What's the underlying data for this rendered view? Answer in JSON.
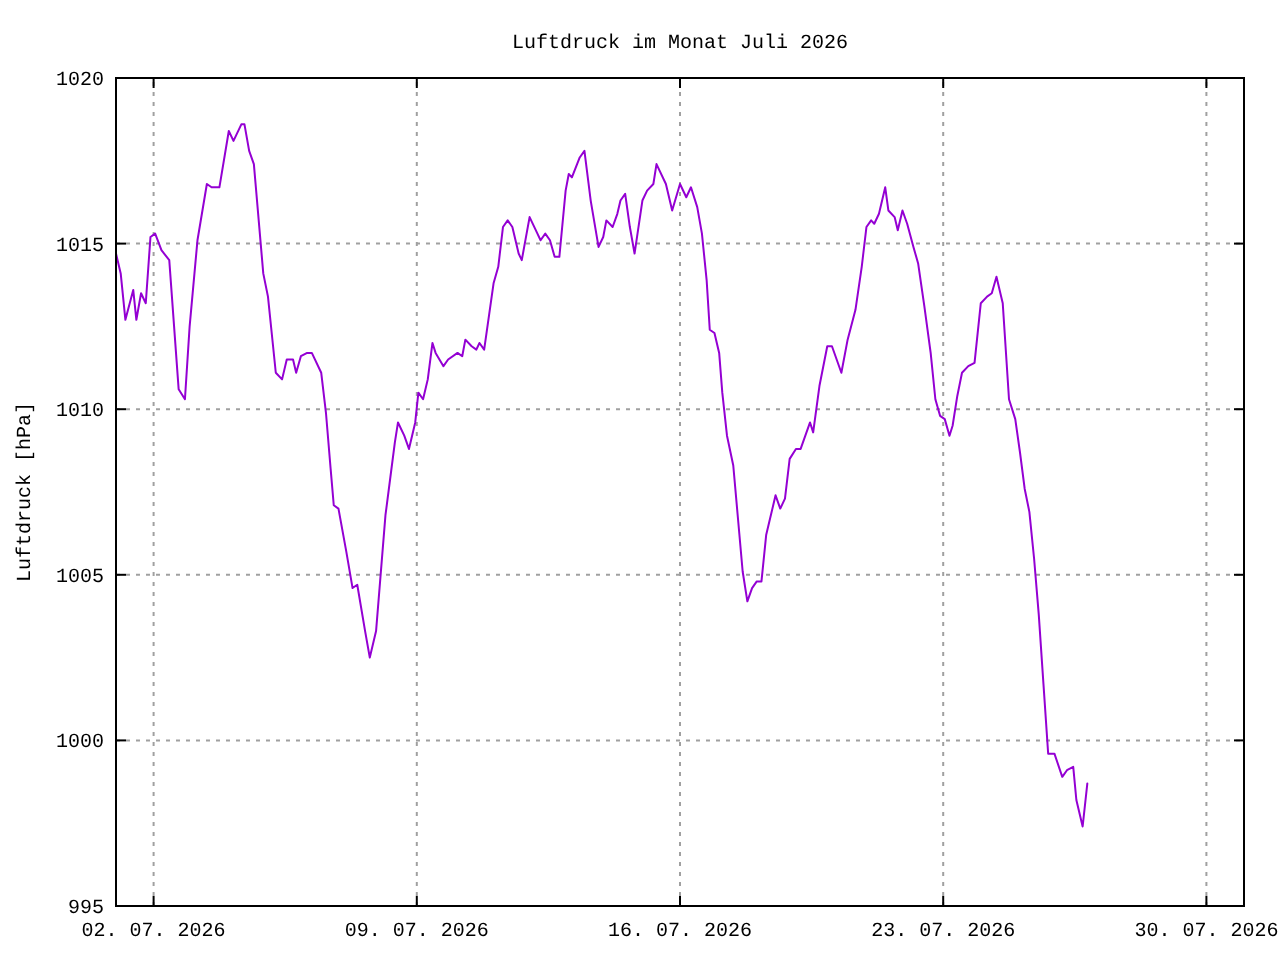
{
  "chart_data": {
    "type": "line",
    "title": "Luftdruck im Monat Juli 2026",
    "ylabel": "Luftdruck [hPa]",
    "x": [
      "2026-07-01T00:00",
      "2026-07-01T03:00",
      "2026-07-01T06:00",
      "2026-07-01T11:00",
      "2026-07-01T13:00",
      "2026-07-01T16:00",
      "2026-07-01T19:00",
      "2026-07-01T22:00",
      "2026-07-02T01:00",
      "2026-07-02T05:00",
      "2026-07-02T10:00",
      "2026-07-02T16:00",
      "2026-07-02T20:00",
      "2026-07-02T23:00",
      "2026-07-03T04:00",
      "2026-07-03T10:00",
      "2026-07-03T13:00",
      "2026-07-03T18:00",
      "2026-07-04T00:00",
      "2026-07-04T03:00",
      "2026-07-04T08:00",
      "2026-07-04T10:00",
      "2026-07-04T13:00",
      "2026-07-04T16:00",
      "2026-07-04T22:00",
      "2026-07-05T01:00",
      "2026-07-05T06:00",
      "2026-07-05T10:00",
      "2026-07-05T13:00",
      "2026-07-05T17:00",
      "2026-07-05T19:00",
      "2026-07-05T22:00",
      "2026-07-06T02:00",
      "2026-07-06T05:00",
      "2026-07-06T11:00",
      "2026-07-06T14:00",
      "2026-07-06T17:00",
      "2026-07-06T19:00",
      "2026-07-06T22:00",
      "2026-07-07T03:00",
      "2026-07-07T07:00",
      "2026-07-07T10:00",
      "2026-07-07T15:00",
      "2026-07-07T18:00",
      "2026-07-07T22:00",
      "2026-07-08T04:00",
      "2026-07-08T07:00",
      "2026-07-08T10:00",
      "2026-07-08T12:00",
      "2026-07-08T16:00",
      "2026-07-08T19:00",
      "2026-07-08T23:00",
      "2026-07-09T01:00",
      "2026-07-09T04:00",
      "2026-07-09T07:00",
      "2026-07-09T10:00",
      "2026-07-09T12:00",
      "2026-07-09T17:00",
      "2026-07-09T20:00",
      "2026-07-10T02:00",
      "2026-07-10T05:00",
      "2026-07-10T07:00",
      "2026-07-10T11:00",
      "2026-07-10T14:00",
      "2026-07-10T16:00",
      "2026-07-10T19:00",
      "2026-07-11T01:00",
      "2026-07-11T04:00",
      "2026-07-11T07:00",
      "2026-07-11T10:00",
      "2026-07-11T13:00",
      "2026-07-11T17:00",
      "2026-07-11T19:00",
      "2026-07-12T00:00",
      "2026-07-12T05:00",
      "2026-07-12T07:00",
      "2026-07-12T10:00",
      "2026-07-12T13:00",
      "2026-07-12T16:00",
      "2026-07-12T19:00",
      "2026-07-12T23:00",
      "2026-07-13T01:00",
      "2026-07-13T03:00",
      "2026-07-13T08:00",
      "2026-07-13T11:00",
      "2026-07-13T15:00",
      "2026-07-13T20:00",
      "2026-07-13T23:00",
      "2026-07-14T01:00",
      "2026-07-14T05:00",
      "2026-07-14T08:00",
      "2026-07-14T10:00",
      "2026-07-14T13:00",
      "2026-07-14T16:00",
      "2026-07-14T19:00",
      "2026-07-15T00:00",
      "2026-07-15T03:00",
      "2026-07-15T07:00",
      "2026-07-15T09:00",
      "2026-07-15T15:00",
      "2026-07-15T19:00",
      "2026-07-16T00:00",
      "2026-07-16T04:00",
      "2026-07-16T07:00",
      "2026-07-16T11:00",
      "2026-07-16T14:00",
      "2026-07-16T17:00",
      "2026-07-16T19:00",
      "2026-07-16T22:00",
      "2026-07-17T01:00",
      "2026-07-17T03:00",
      "2026-07-17T06:00",
      "2026-07-17T10:00",
      "2026-07-17T13:00",
      "2026-07-17T16:00",
      "2026-07-17T19:00",
      "2026-07-17T22:00",
      "2026-07-18T01:00",
      "2026-07-18T04:00",
      "2026-07-18T07:00",
      "2026-07-18T09:00",
      "2026-07-18T13:00",
      "2026-07-18T16:00",
      "2026-07-18T19:00",
      "2026-07-18T22:00",
      "2026-07-19T02:00",
      "2026-07-19T05:00",
      "2026-07-19T08:00",
      "2026-07-19T11:00",
      "2026-07-19T13:00",
      "2026-07-19T17:00",
      "2026-07-19T22:00",
      "2026-07-20T01:00",
      "2026-07-20T07:00",
      "2026-07-20T11:00",
      "2026-07-20T16:00",
      "2026-07-20T20:00",
      "2026-07-20T23:00",
      "2026-07-21T02:00",
      "2026-07-21T04:00",
      "2026-07-21T07:00",
      "2026-07-21T11:00",
      "2026-07-21T13:00",
      "2026-07-21T17:00",
      "2026-07-21T19:00",
      "2026-07-21T22:00",
      "2026-07-22T01:00",
      "2026-07-22T05:00",
      "2026-07-22T08:00",
      "2026-07-22T12:00",
      "2026-07-22T16:00",
      "2026-07-22T19:00",
      "2026-07-22T22:00",
      "2026-07-23T01:00",
      "2026-07-23T04:00",
      "2026-07-23T06:00",
      "2026-07-23T09:00",
      "2026-07-23T12:00",
      "2026-07-23T16:00",
      "2026-07-23T20:00",
      "2026-07-24T00:00",
      "2026-07-24T04:00",
      "2026-07-24T07:00",
      "2026-07-24T10:00",
      "2026-07-24T14:00",
      "2026-07-24T18:00",
      "2026-07-24T22:00",
      "2026-07-25T01:00",
      "2026-07-25T04:00",
      "2026-07-25T07:00",
      "2026-07-25T10:00",
      "2026-07-25T13:00",
      "2026-07-25T16:00",
      "2026-07-25T19:00",
      "2026-07-25T23:00",
      "2026-07-26T04:00",
      "2026-07-26T07:00",
      "2026-07-26T11:00",
      "2026-07-26T13:00",
      "2026-07-26T17:00",
      "2026-07-26T20:00"
    ],
    "series": [
      {
        "color": "#9400d3",
        "values": [
          1014.7,
          1014.1,
          1012.7,
          1013.6,
          1012.7,
          1013.5,
          1013.2,
          1015.2,
          1015.3,
          1014.8,
          1014.5,
          1010.6,
          1010.3,
          1012.5,
          1015.1,
          1016.8,
          1016.7,
          1016.7,
          1018.4,
          1018.1,
          1018.6,
          1018.6,
          1017.8,
          1017.4,
          1014.1,
          1013.4,
          1011.1,
          1010.9,
          1011.5,
          1011.5,
          1011.1,
          1011.6,
          1011.7,
          1011.7,
          1011.1,
          1009.9,
          1008.2,
          1007.1,
          1007.0,
          1005.7,
          1004.6,
          1004.7,
          1003.3,
          1002.5,
          1003.3,
          1006.8,
          1007.9,
          1009.0,
          1009.6,
          1009.2,
          1008.8,
          1009.6,
          1010.5,
          1010.3,
          1010.9,
          1012.0,
          1011.7,
          1011.3,
          1011.5,
          1011.7,
          1011.6,
          1012.1,
          1011.9,
          1011.8,
          1012.0,
          1011.8,
          1013.8,
          1014.3,
          1015.5,
          1015.7,
          1015.5,
          1014.7,
          1014.5,
          1015.8,
          1015.3,
          1015.1,
          1015.3,
          1015.1,
          1014.6,
          1014.6,
          1016.6,
          1017.1,
          1017.0,
          1017.6,
          1017.8,
          1016.3,
          1014.9,
          1015.2,
          1015.7,
          1015.5,
          1015.9,
          1016.3,
          1016.5,
          1015.5,
          1014.7,
          1016.3,
          1016.6,
          1016.8,
          1017.4,
          1016.8,
          1016.0,
          1016.8,
          1016.4,
          1016.7,
          1016.1,
          1015.3,
          1013.9,
          1012.4,
          1012.3,
          1011.7,
          1010.5,
          1009.2,
          1008.3,
          1006.7,
          1005.1,
          1004.2,
          1004.6,
          1004.8,
          1004.8,
          1006.2,
          1006.6,
          1007.4,
          1007.0,
          1007.3,
          1008.5,
          1008.8,
          1008.8,
          1009.2,
          1009.6,
          1009.3,
          1010.7,
          1011.9,
          1011.9,
          1011.1,
          1012.1,
          1013.0,
          1014.3,
          1015.5,
          1015.7,
          1015.6,
          1015.9,
          1016.7,
          1016.0,
          1015.8,
          1015.4,
          1016.0,
          1015.6,
          1014.9,
          1014.4,
          1013.1,
          1011.7,
          1010.3,
          1009.8,
          1009.7,
          1009.2,
          1009.5,
          1010.4,
          1011.1,
          1011.3,
          1011.4,
          1013.2,
          1013.4,
          1013.5,
          1014.0,
          1013.2,
          1010.3,
          1009.7,
          1008.7,
          1007.6,
          1006.9,
          1005.5,
          1003.8,
          1001.7,
          999.6,
          999.6,
          998.9,
          999.1,
          999.2,
          998.2,
          997.4,
          998.7
        ]
      }
    ],
    "xlim": [
      "2026-07-01",
      "2026-07-31"
    ],
    "xticks": [
      {
        "value": "2026-07-02",
        "label": "02. 07. 2026"
      },
      {
        "value": "2026-07-09",
        "label": "09. 07. 2026"
      },
      {
        "value": "2026-07-16",
        "label": "16. 07. 2026"
      },
      {
        "value": "2026-07-23",
        "label": "23. 07. 2026"
      },
      {
        "value": "2026-07-30",
        "label": "30. 07. 2026"
      }
    ],
    "ylim": [
      995,
      1020
    ],
    "yticks": [
      995,
      1000,
      1005,
      1010,
      1015,
      1020
    ],
    "grid": true,
    "line_style": "solid"
  }
}
